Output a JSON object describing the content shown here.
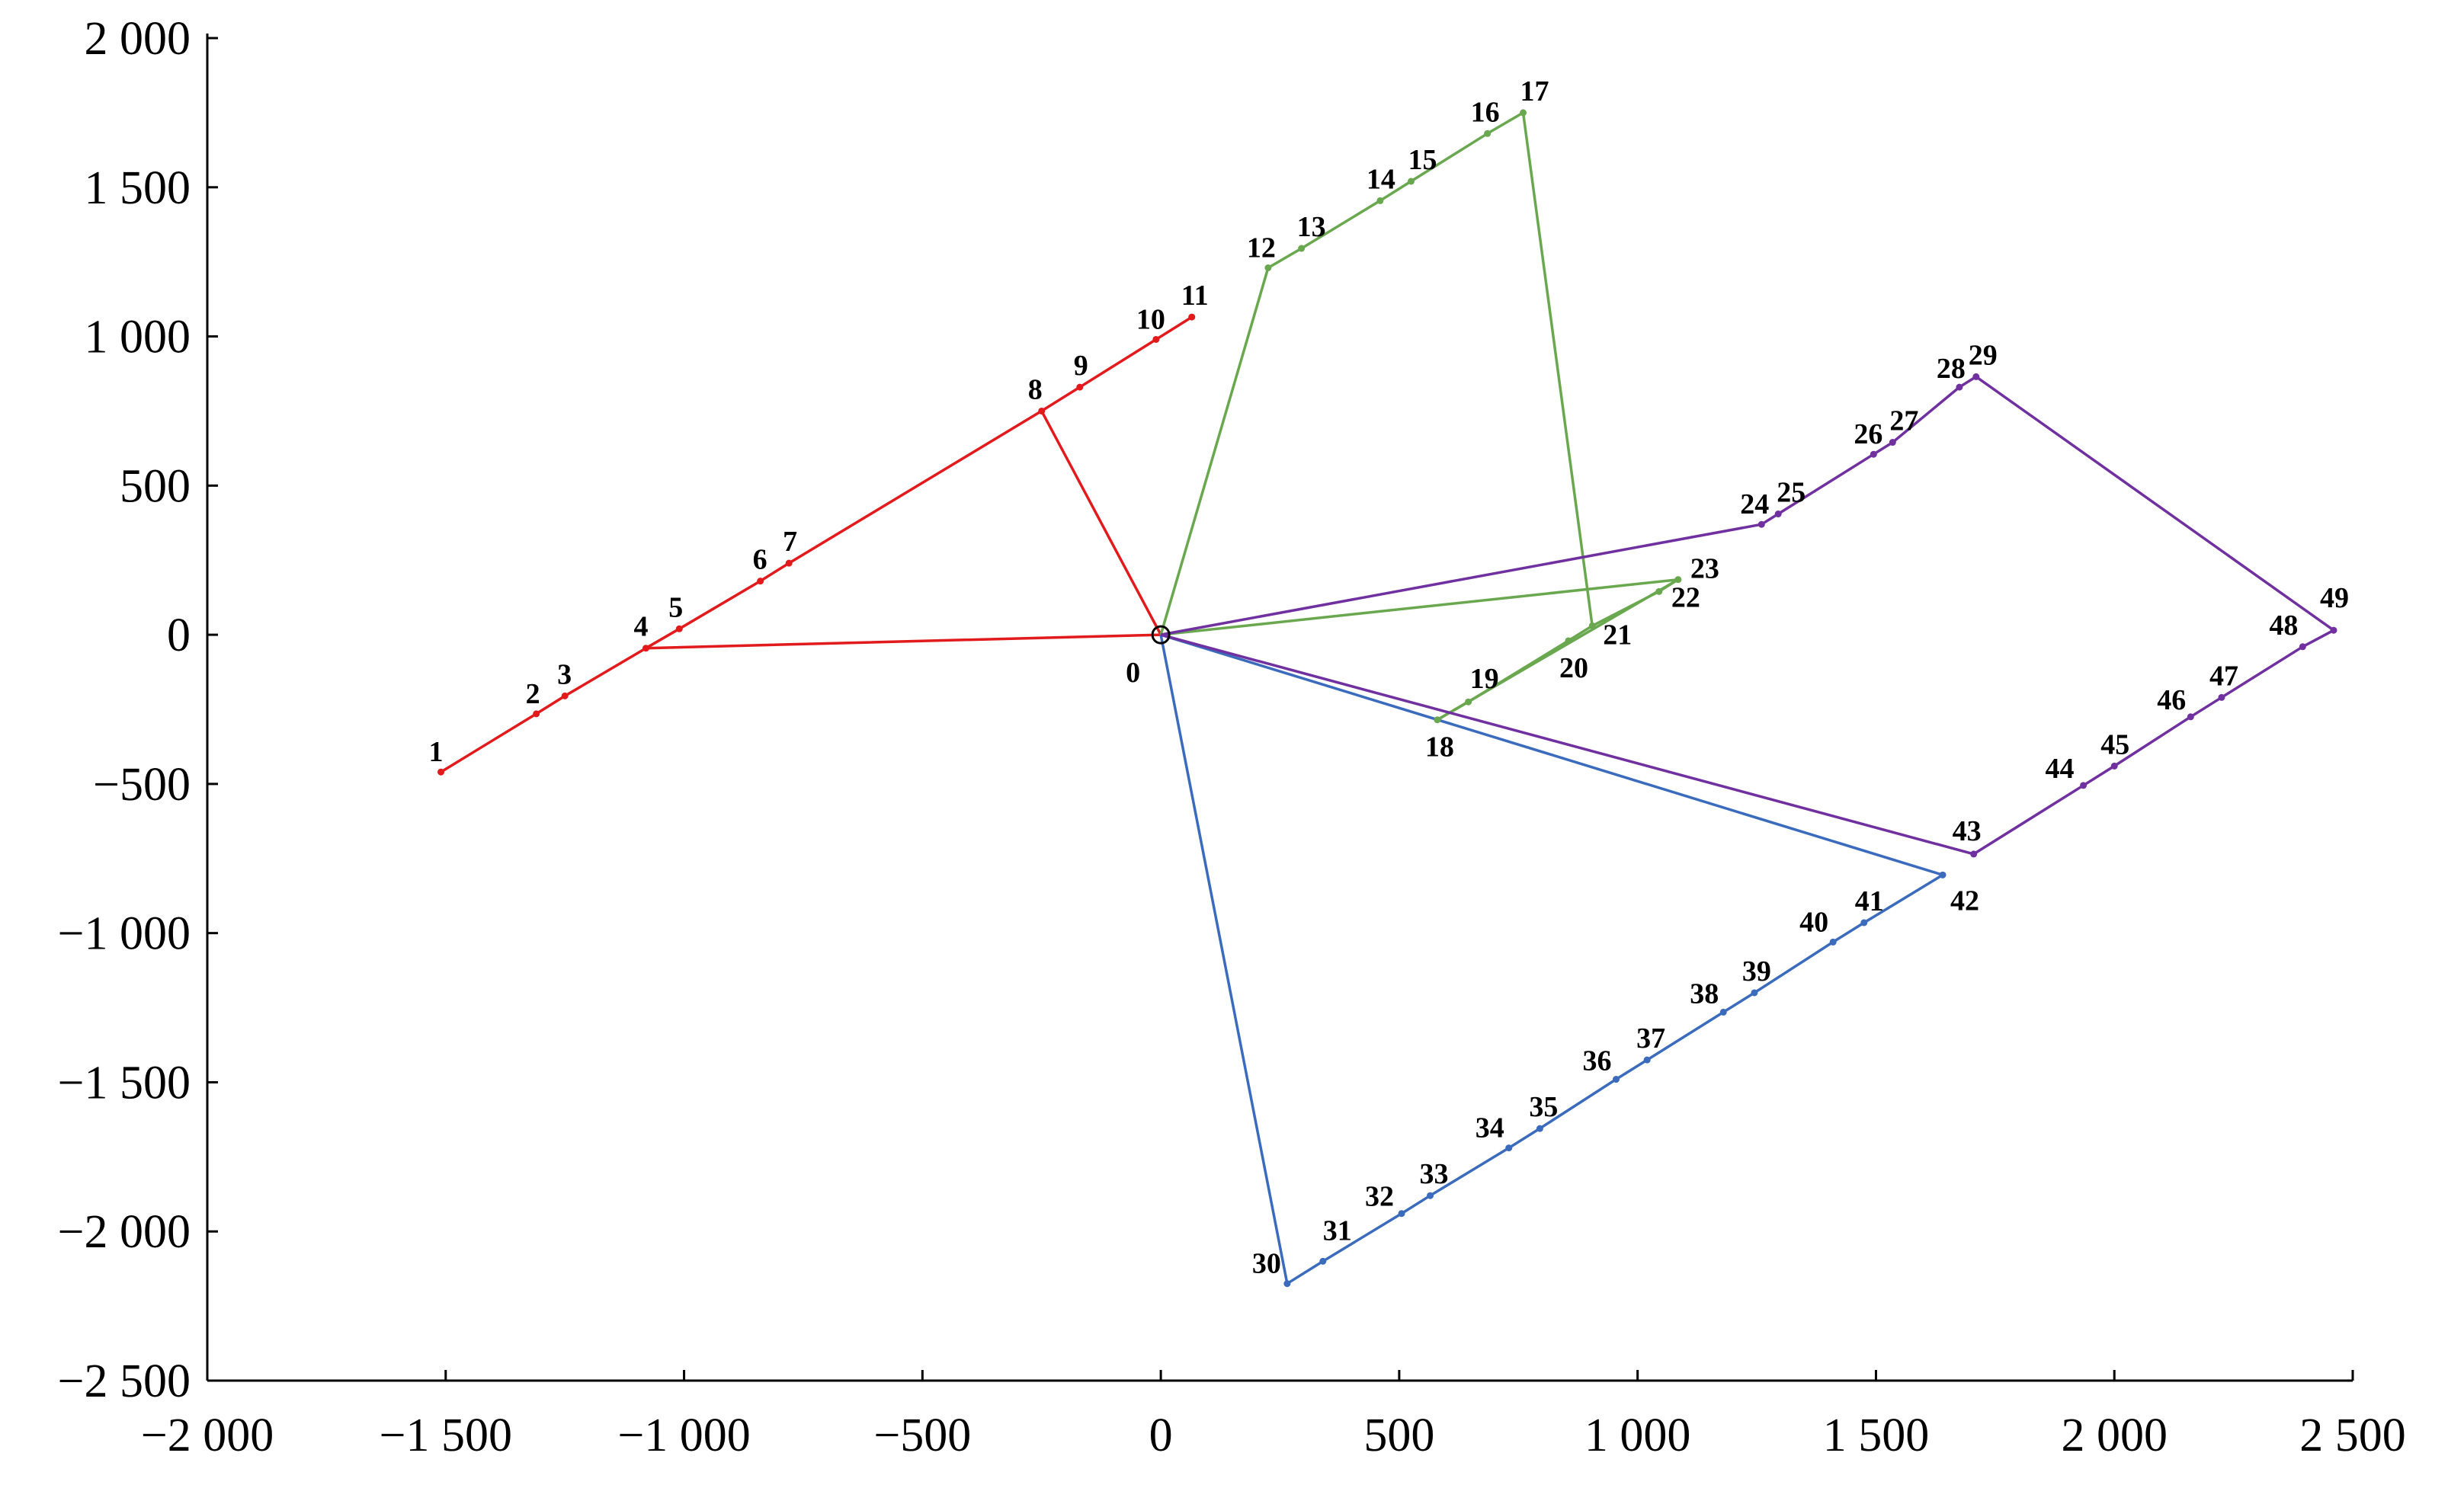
{
  "chart_data": {
    "type": "line",
    "title": "",
    "xlabel": "",
    "ylabel": "",
    "xlim": [
      -2000,
      2500
    ],
    "ylim": [
      -2500,
      2000
    ],
    "grid": false,
    "x_ticks": [
      {
        "value": -2000,
        "label": "−2 000"
      },
      {
        "value": -1500,
        "label": "−1 500"
      },
      {
        "value": -1000,
        "label": "−1 000"
      },
      {
        "value": -500,
        "label": "−500"
      },
      {
        "value": 0,
        "label": "0"
      },
      {
        "value": 500,
        "label": "500"
      },
      {
        "value": 1000,
        "label": "1 000"
      },
      {
        "value": 1500,
        "label": "1 500"
      },
      {
        "value": 2000,
        "label": "2 000"
      },
      {
        "value": 2500,
        "label": "2 500"
      }
    ],
    "y_ticks": [
      {
        "value": 2000,
        "label": "2 000"
      },
      {
        "value": 1500,
        "label": "1 500"
      },
      {
        "value": 1000,
        "label": "1 000"
      },
      {
        "value": 500,
        "label": "500"
      },
      {
        "value": 0,
        "label": "0"
      },
      {
        "value": -500,
        "label": "−500"
      },
      {
        "value": -1000,
        "label": "−1 000"
      },
      {
        "value": -1500,
        "label": "−1 500"
      },
      {
        "value": -2000,
        "label": "−2 000"
      },
      {
        "value": -2500,
        "label": "−2 500"
      }
    ],
    "depot": {
      "id": "0",
      "x": 0,
      "y": 0
    },
    "nodes": [
      {
        "id": "1",
        "x": -1510,
        "y": -460
      },
      {
        "id": "2",
        "x": -1310,
        "y": -265
      },
      {
        "id": "3",
        "x": -1250,
        "y": -205
      },
      {
        "id": "4",
        "x": -1080,
        "y": -45
      },
      {
        "id": "5",
        "x": -1010,
        "y": 20
      },
      {
        "id": "6",
        "x": -840,
        "y": 180
      },
      {
        "id": "7",
        "x": -780,
        "y": 240
      },
      {
        "id": "8",
        "x": -250,
        "y": 750
      },
      {
        "id": "9",
        "x": -170,
        "y": 830
      },
      {
        "id": "10",
        "x": -10,
        "y": 990
      },
      {
        "id": "11",
        "x": 65,
        "y": 1065
      },
      {
        "id": "12",
        "x": 225,
        "y": 1230
      },
      {
        "id": "13",
        "x": 295,
        "y": 1295
      },
      {
        "id": "14",
        "x": 460,
        "y": 1455
      },
      {
        "id": "15",
        "x": 525,
        "y": 1520
      },
      {
        "id": "16",
        "x": 685,
        "y": 1680
      },
      {
        "id": "17",
        "x": 760,
        "y": 1750
      },
      {
        "id": "18",
        "x": 580,
        "y": -285
      },
      {
        "id": "19",
        "x": 645,
        "y": -225
      },
      {
        "id": "20",
        "x": 855,
        "y": -20
      },
      {
        "id": "21",
        "x": 905,
        "y": 30
      },
      {
        "id": "22",
        "x": 1045,
        "y": 145
      },
      {
        "id": "23",
        "x": 1085,
        "y": 185
      },
      {
        "id": "24",
        "x": 1260,
        "y": 370
      },
      {
        "id": "25",
        "x": 1295,
        "y": 405
      },
      {
        "id": "26",
        "x": 1495,
        "y": 605
      },
      {
        "id": "27",
        "x": 1535,
        "y": 645
      },
      {
        "id": "28",
        "x": 1675,
        "y": 830
      },
      {
        "id": "29",
        "x": 1710,
        "y": 865
      },
      {
        "id": "30",
        "x": 265,
        "y": -2175
      },
      {
        "id": "31",
        "x": 340,
        "y": -2100
      },
      {
        "id": "32",
        "x": 505,
        "y": -1940
      },
      {
        "id": "33",
        "x": 565,
        "y": -1880
      },
      {
        "id": "34",
        "x": 730,
        "y": -1720
      },
      {
        "id": "35",
        "x": 795,
        "y": -1655
      },
      {
        "id": "36",
        "x": 955,
        "y": -1490
      },
      {
        "id": "37",
        "x": 1020,
        "y": -1425
      },
      {
        "id": "38",
        "x": 1180,
        "y": -1265
      },
      {
        "id": "39",
        "x": 1245,
        "y": -1200
      },
      {
        "id": "40",
        "x": 1410,
        "y": -1030
      },
      {
        "id": "41",
        "x": 1475,
        "y": -965
      },
      {
        "id": "42",
        "x": 1640,
        "y": -805
      },
      {
        "id": "43",
        "x": 1705,
        "y": -735
      },
      {
        "id": "44",
        "x": 1935,
        "y": -505
      },
      {
        "id": "45",
        "x": 2000,
        "y": -440
      },
      {
        "id": "46",
        "x": 2160,
        "y": -275
      },
      {
        "id": "47",
        "x": 2225,
        "y": -210
      },
      {
        "id": "48",
        "x": 2395,
        "y": -40
      },
      {
        "id": "49",
        "x": 2460,
        "y": 15
      }
    ],
    "series": [
      {
        "color": "#e31a1c",
        "path": [
          "0",
          "4",
          "5",
          "6",
          "7",
          "8",
          "9",
          "10",
          "11"
        ],
        "branches": [
          [
            "4",
            "3",
            "2",
            "1"
          ],
          [
            "8",
            "0"
          ]
        ]
      },
      {
        "color": "#6aa84f",
        "path": [
          "0",
          "12",
          "13",
          "14",
          "15",
          "16",
          "17",
          "21",
          "20",
          "19",
          "18"
        ],
        "branches": [
          [
            "18",
            "23"
          ],
          [
            "23",
            "22",
            "21"
          ],
          [
            "23",
            "0"
          ]
        ]
      },
      {
        "color": "#3a6bbd",
        "path": [
          "0",
          "30",
          "31",
          "32",
          "33",
          "34",
          "35",
          "36",
          "37",
          "38",
          "39",
          "40",
          "41",
          "42",
          "0"
        ],
        "branches": []
      },
      {
        "color": "#7030a0",
        "path": [
          "0",
          "24",
          "25",
          "26",
          "27",
          "28",
          "29",
          "49",
          "48",
          "47",
          "46",
          "45",
          "44",
          "43",
          "0"
        ],
        "branches": []
      }
    ]
  }
}
